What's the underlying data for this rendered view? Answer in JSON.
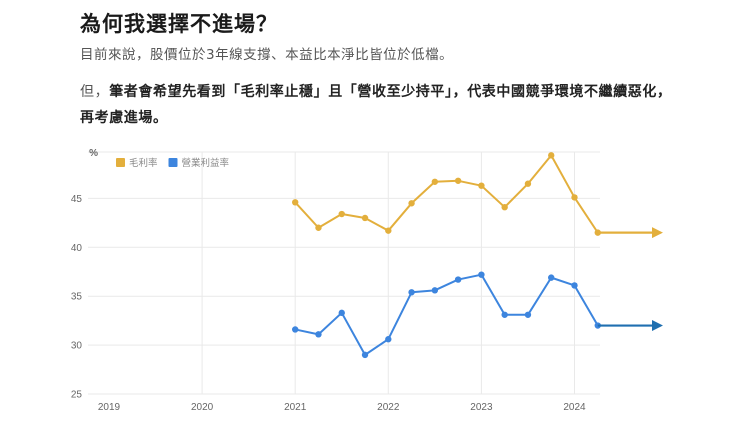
{
  "header": {
    "title": "為何我選擇不進場？",
    "subtitle": "目前來說，股價位於3年線支撐、本益比本淨比皆位於低檔。"
  },
  "paragraph": {
    "lead": "但，",
    "body": "筆者會希望先看到「毛利率止穩」且「營收至少持平」，代表中國競爭環境不繼續惡化，再考慮進場。"
  },
  "colors": {
    "gross_margin": "#E3AF3C",
    "operating_margin": "#3D85DE",
    "operating_arrow": "#1F6FB0",
    "grid": "#E9E9E9"
  },
  "chart_data": {
    "type": "line",
    "title": "",
    "xlabel": "",
    "ylabel": "%",
    "ylim": [
      25,
      50
    ],
    "yticks": [
      25,
      30,
      35,
      40,
      45
    ],
    "xticks": [
      "2019",
      "2020",
      "2021",
      "2022",
      "2023",
      "2024"
    ],
    "grid": true,
    "legend_position": "top-left",
    "x": [
      "2021Q1",
      "2021Q2",
      "2021Q3",
      "2021Q4",
      "2022Q1",
      "2022Q2",
      "2022Q3",
      "2022Q4",
      "2023Q1",
      "2023Q2",
      "2023Q3",
      "2023Q4",
      "2024Q1",
      "2024Q2"
    ],
    "series": [
      {
        "name": "毛利率",
        "color": "#E3AF3C",
        "values": [
          44.6,
          42.0,
          43.4,
          43.0,
          41.7,
          44.5,
          46.7,
          46.8,
          46.3,
          44.1,
          46.5,
          49.4,
          45.1,
          41.5
        ]
      },
      {
        "name": "營業利益率",
        "color": "#3D85DE",
        "values": [
          31.6,
          31.1,
          33.3,
          29.0,
          30.6,
          35.4,
          35.6,
          36.7,
          37.2,
          33.1,
          33.1,
          36.9,
          36.1,
          32.0
        ]
      }
    ],
    "annotations": [
      "flat arrow extending from last 毛利率 point",
      "flat arrow extending from last 營業利益率 point"
    ]
  }
}
